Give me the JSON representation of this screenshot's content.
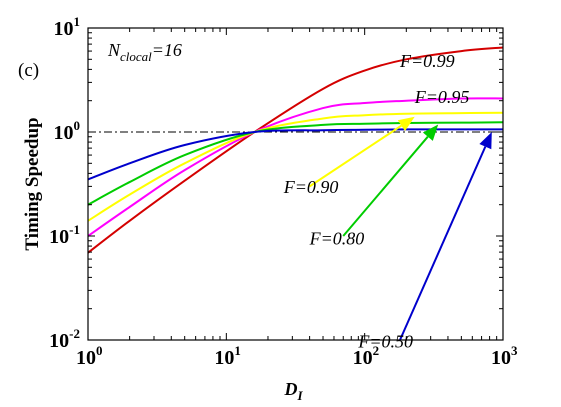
{
  "chart_data": {
    "type": "line",
    "panel_label": "(c)",
    "annotation": {
      "main": "N",
      "sub": "clocal",
      "suffix": "=16"
    },
    "xlabel": {
      "main": "D",
      "sub": "I"
    },
    "ylabel": "Timing Speedup",
    "xscale": "log",
    "yscale": "log",
    "xlim": [
      1,
      1000
    ],
    "ylim": [
      0.01,
      10
    ],
    "x_ticks": [
      {
        "base": "10",
        "exp": "0"
      },
      {
        "base": "10",
        "exp": "1"
      },
      {
        "base": "10",
        "exp": "2"
      },
      {
        "base": "10",
        "exp": "3"
      }
    ],
    "y_ticks": [
      {
        "base": "10",
        "exp": "-2"
      },
      {
        "base": "10",
        "exp": "-1"
      },
      {
        "base": "10",
        "exp": "0"
      },
      {
        "base": "10",
        "exp": "1"
      }
    ],
    "reference_line": {
      "y": 1,
      "style": "dash-dot",
      "color": "#000000"
    },
    "series": [
      {
        "name": "F=0.99",
        "color": "#d40000",
        "x": [
          1,
          2,
          5,
          16,
          50,
          100,
          200,
          500,
          1000
        ],
        "y": [
          0.069,
          0.14,
          0.34,
          1.0,
          2.6,
          3.9,
          5.0,
          6.0,
          6.5
        ]
      },
      {
        "name": "F=0.95",
        "color": "#ff00ff",
        "x": [
          1,
          2,
          5,
          16,
          50,
          100,
          200,
          500,
          1000
        ],
        "y": [
          0.1,
          0.19,
          0.43,
          1.0,
          1.7,
          1.9,
          2.0,
          2.1,
          2.1
        ]
      },
      {
        "name": "F=0.90",
        "color": "#ffff00",
        "x": [
          1,
          2,
          5,
          16,
          50,
          100,
          200,
          500,
          1000
        ],
        "y": [
          0.14,
          0.25,
          0.5,
          1.0,
          1.35,
          1.45,
          1.5,
          1.52,
          1.53
        ]
      },
      {
        "name": "F=0.80",
        "color": "#00cc00",
        "x": [
          1,
          2,
          5,
          16,
          50,
          100,
          200,
          500,
          1000
        ],
        "y": [
          0.2,
          0.33,
          0.6,
          1.0,
          1.17,
          1.2,
          1.22,
          1.23,
          1.24
        ]
      },
      {
        "name": "F=0.50",
        "color": "#0000cc",
        "x": [
          1,
          2,
          5,
          16,
          50,
          100,
          200,
          500,
          1000
        ],
        "y": [
          0.35,
          0.5,
          0.75,
          1.0,
          1.04,
          1.05,
          1.06,
          1.06,
          1.06
        ]
      }
    ],
    "labels": [
      {
        "series": "F=0.99",
        "text": "F=0.99",
        "at": [
          180,
          4.2
        ],
        "arrow": false
      },
      {
        "series": "F=0.95",
        "text": "F=0.95",
        "at": [
          230,
          1.9
        ],
        "arrow": false
      },
      {
        "series": "F=0.90",
        "text": "F=0.90",
        "at": [
          26,
          0.26
        ],
        "arrow_from": [
          40,
          0.3
        ],
        "arrow_to": [
          230,
          1.4
        ]
      },
      {
        "series": "F=0.80",
        "text": "F=0.80",
        "at": [
          40,
          0.083
        ],
        "arrow_from": [
          70,
          0.1
        ],
        "arrow_to": [
          340,
          1.18
        ]
      },
      {
        "series": "F=0.50",
        "text": "F=0.50",
        "at": [
          90,
          0.0085
        ],
        "arrow_from": [
          180,
          0.01
        ],
        "arrow_to": [
          830,
          1.0
        ]
      }
    ]
  }
}
